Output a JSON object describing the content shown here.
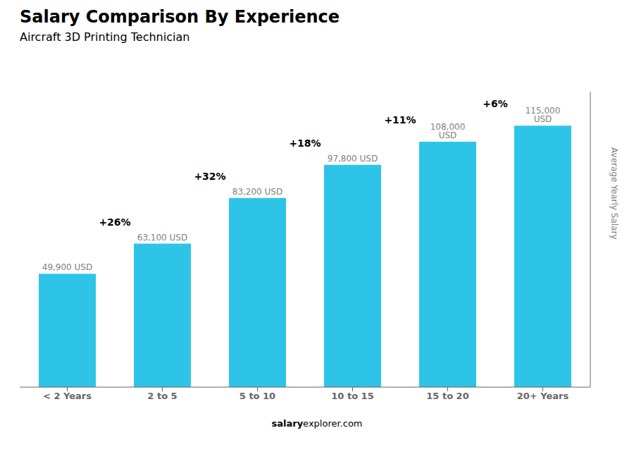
{
  "chart_data": {
    "type": "bar",
    "title": "Salary Comparison By Experience",
    "subtitle": "Aircraft 3D Printing Technician",
    "y_label": "Average Yearly Salary",
    "categories": [
      "< 2 Years",
      "2 to 5",
      "5 to 10",
      "10 to 15",
      "15 to 20",
      "20+ Years"
    ],
    "values": [
      49900,
      63100,
      83200,
      97800,
      108000,
      115000
    ],
    "value_labels": [
      "49,900 USD",
      "63,100 USD",
      "83,200 USD",
      "97,800 USD",
      "108,000 USD",
      "115,000 USD"
    ],
    "data_labels": true,
    "annotations": [
      null,
      "+26%",
      "+32%",
      "+18%",
      "+11%",
      "+6%"
    ],
    "color": "#2ec4e8",
    "ylim": [
      0,
      130000
    ],
    "tick_labels": "x",
    "grid": false,
    "footer": [
      "salary",
      "explorer.com"
    ]
  }
}
